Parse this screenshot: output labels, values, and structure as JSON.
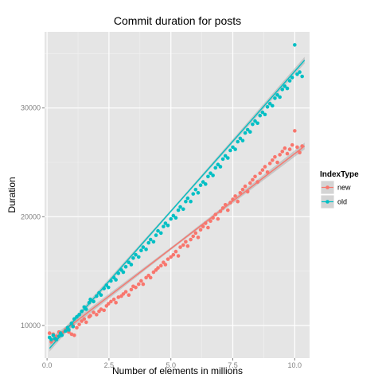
{
  "chart_data": {
    "type": "scatter",
    "title": "Commit duration for posts",
    "xlabel": "Number of elements in millions",
    "ylabel": "Duration",
    "xlim": [
      -0.1,
      10.6
    ],
    "ylim": [
      7000,
      37000
    ],
    "x_ticks": [
      0.0,
      2.5,
      5.0,
      7.5,
      10.0
    ],
    "x_tick_labels": [
      "0.0",
      "2.5",
      "5.0",
      "7.5",
      "10.0"
    ],
    "y_ticks": [
      10000,
      20000,
      30000
    ],
    "y_tick_labels": [
      "10000",
      "20000",
      "30000"
    ],
    "grid": true,
    "legend": {
      "title": "IndexType",
      "position": "right"
    },
    "colors": {
      "new": "#F8766D",
      "old": "#00BFC4",
      "panel": "#E5E5E5",
      "band": "#999999"
    },
    "series": [
      {
        "name": "new",
        "trend": {
          "x": [
            0.1,
            10.4
          ],
          "y": [
            8500,
            26500
          ]
        },
        "x": [
          0.1,
          0.17,
          0.25,
          0.32,
          0.38,
          0.48,
          0.55,
          0.6,
          0.75,
          0.83,
          0.88,
          0.99,
          1.05,
          1.1,
          1.2,
          1.3,
          1.4,
          1.5,
          1.58,
          1.7,
          1.75,
          1.88,
          2.0,
          2.1,
          2.18,
          2.3,
          2.4,
          2.48,
          2.58,
          2.7,
          2.78,
          2.88,
          3.0,
          3.08,
          3.18,
          3.3,
          3.4,
          3.48,
          3.58,
          3.7,
          3.8,
          3.88,
          4.0,
          4.1,
          4.18,
          4.3,
          4.4,
          4.48,
          4.6,
          4.7,
          4.78,
          4.88,
          5.0,
          5.1,
          5.2,
          5.3,
          5.38,
          5.5,
          5.6,
          5.68,
          5.8,
          5.9,
          6.0,
          6.1,
          6.2,
          6.3,
          6.4,
          6.5,
          6.6,
          6.7,
          6.8,
          6.9,
          7.0,
          7.1,
          7.2,
          7.3,
          7.4,
          7.5,
          7.6,
          7.7,
          7.8,
          7.9,
          8.0,
          8.1,
          8.2,
          8.3,
          8.4,
          8.5,
          8.6,
          8.7,
          8.8,
          8.9,
          9.0,
          9.1,
          9.2,
          9.3,
          9.4,
          9.5,
          9.6,
          9.7,
          9.8,
          9.9,
          10.0,
          10.1,
          10.2,
          10.3
        ],
        "y": [
          9300,
          8500,
          9200,
          8700,
          9000,
          9400,
          9100,
          9300,
          9600,
          9500,
          9400,
          9200,
          10000,
          9100,
          9800,
          10100,
          10400,
          10600,
          10300,
          10800,
          10900,
          11200,
          11000,
          11300,
          11500,
          11400,
          11800,
          12000,
          12200,
          12400,
          12100,
          12600,
          12700,
          12900,
          13100,
          12800,
          13300,
          13600,
          13500,
          13800,
          14100,
          13800,
          14400,
          14600,
          14400,
          14900,
          15100,
          15300,
          15500,
          15800,
          15600,
          16100,
          16300,
          16500,
          16800,
          16400,
          17200,
          17400,
          17700,
          17300,
          17900,
          18200,
          18500,
          18100,
          18800,
          19100,
          19400,
          19000,
          19600,
          19900,
          20200,
          19800,
          20500,
          20800,
          21100,
          20600,
          21300,
          21600,
          21900,
          21400,
          22200,
          22500,
          22800,
          22300,
          23100,
          23400,
          23700,
          23200,
          24000,
          24300,
          24600,
          24100,
          24900,
          25200,
          25500,
          25000,
          25700,
          26000,
          26300,
          25800,
          26200,
          26600,
          27900,
          26400,
          25900,
          26500
        ]
      },
      {
        "name": "old",
        "trend": {
          "x": [
            0.1,
            10.4
          ],
          "y": [
            7900,
            34400
          ]
        },
        "x": [
          0.1,
          0.17,
          0.25,
          0.32,
          0.38,
          0.48,
          0.55,
          0.6,
          0.75,
          0.83,
          0.88,
          0.99,
          1.05,
          1.1,
          1.2,
          1.3,
          1.4,
          1.5,
          1.58,
          1.7,
          1.75,
          1.88,
          2.0,
          2.1,
          2.18,
          2.3,
          2.4,
          2.48,
          2.58,
          2.7,
          2.78,
          2.88,
          3.0,
          3.08,
          3.18,
          3.3,
          3.4,
          3.48,
          3.58,
          3.7,
          3.8,
          3.88,
          4.0,
          4.1,
          4.18,
          4.3,
          4.4,
          4.48,
          4.6,
          4.7,
          4.78,
          4.88,
          5.0,
          5.1,
          5.2,
          5.3,
          5.38,
          5.5,
          5.6,
          5.68,
          5.8,
          5.9,
          6.0,
          6.1,
          6.2,
          6.3,
          6.4,
          6.5,
          6.6,
          6.7,
          6.8,
          6.9,
          7.0,
          7.1,
          7.2,
          7.3,
          7.4,
          7.5,
          7.6,
          7.7,
          7.8,
          7.9,
          8.0,
          8.1,
          8.2,
          8.3,
          8.4,
          8.5,
          8.6,
          8.7,
          8.8,
          8.9,
          9.0,
          9.1,
          9.2,
          9.3,
          9.4,
          9.5,
          9.6,
          9.7,
          9.8,
          9.9,
          10.0,
          10.1,
          10.2,
          10.3
        ],
        "y": [
          8900,
          8700,
          9100,
          8800,
          8700,
          9000,
          9300,
          9100,
          9500,
          9800,
          9600,
          10200,
          9900,
          10600,
          10800,
          11000,
          11300,
          11700,
          11500,
          12100,
          12400,
          12200,
          12700,
          13000,
          12800,
          13400,
          13700,
          13500,
          14100,
          14400,
          14200,
          14800,
          15100,
          14900,
          15400,
          15800,
          15600,
          16200,
          16500,
          16300,
          16900,
          17200,
          17000,
          17600,
          17900,
          17700,
          18300,
          18700,
          18500,
          19100,
          19400,
          19200,
          19800,
          20100,
          19900,
          20600,
          20900,
          20700,
          21400,
          21700,
          21400,
          22100,
          22500,
          22200,
          22900,
          23200,
          23000,
          23700,
          24000,
          23800,
          24500,
          24800,
          24600,
          25300,
          25600,
          25400,
          26100,
          26400,
          26200,
          26900,
          27200,
          27000,
          27700,
          28000,
          27800,
          28500,
          28800,
          28600,
          29300,
          29600,
          29400,
          30100,
          30400,
          30200,
          30900,
          31200,
          31000,
          31700,
          32000,
          31800,
          32500,
          32800,
          35800,
          33100,
          33300,
          32900
        ]
      }
    ]
  }
}
